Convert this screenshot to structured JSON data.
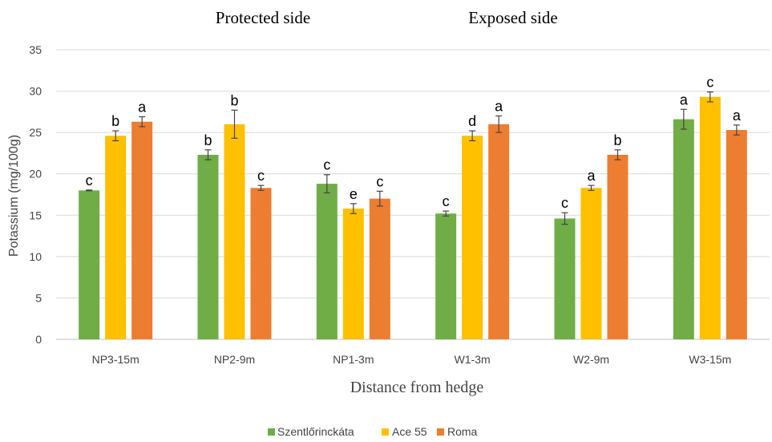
{
  "chart_data": {
    "type": "bar",
    "title_left": "Protected side",
    "title_right": "Exposed side",
    "xlabel": "Distance from hedge",
    "ylabel": "Potassium (mg/100g)",
    "ylim": [
      0,
      35
    ],
    "yticks": [
      "0",
      "5",
      "10",
      "15",
      "20",
      "25",
      "30",
      "35"
    ],
    "grid": true,
    "legend_position": "bottom",
    "categories": [
      "NP3-15m",
      "NP2-9m",
      "NP1-3m",
      "W1-3m",
      "W2-9m",
      "W3-15m"
    ],
    "series": [
      {
        "name": "Szentlőrinckáta",
        "color": "#70ad47",
        "values": [
          18.0,
          22.3,
          18.8,
          15.2,
          14.6,
          26.6
        ],
        "errors": [
          0.05,
          0.6,
          1.1,
          0.3,
          0.7,
          1.2
        ],
        "labels": [
          "c",
          "b",
          "c",
          "c",
          "c",
          "a"
        ]
      },
      {
        "name": "Ace 55",
        "color": "#ffc000",
        "values": [
          24.6,
          26.0,
          15.8,
          24.6,
          18.3,
          29.3
        ],
        "errors": [
          0.6,
          1.7,
          0.6,
          0.6,
          0.3,
          0.6
        ],
        "labels": [
          "b",
          "b",
          "e",
          "d",
          "a",
          "c"
        ]
      },
      {
        "name": "Roma",
        "color": "#ed7d31",
        "values": [
          26.3,
          18.3,
          17.0,
          26.0,
          22.3,
          25.3
        ],
        "errors": [
          0.6,
          0.3,
          0.9,
          1.0,
          0.6,
          0.6
        ],
        "labels": [
          "a",
          "c",
          "c",
          "a",
          "b",
          "a"
        ]
      }
    ]
  }
}
